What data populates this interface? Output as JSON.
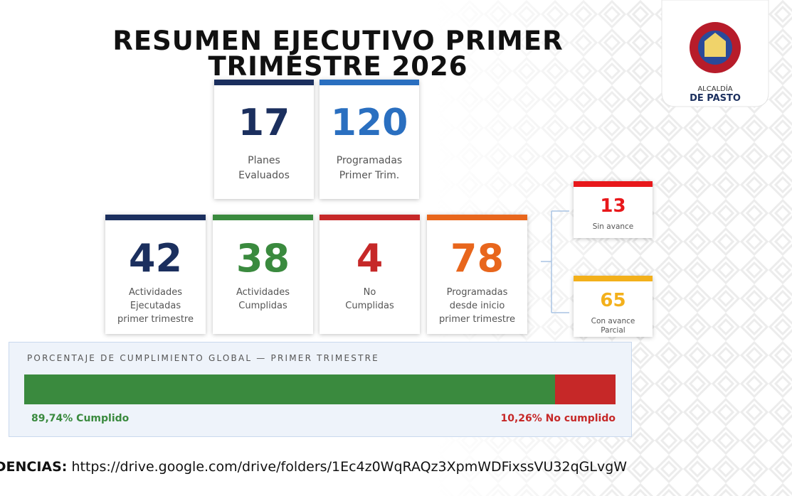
{
  "title": "RESUMEN EJECUTIVO PRIMER TRIMESTRE 2026",
  "logo": {
    "line1": "ALCALDÍA",
    "line2": "DE PASTO"
  },
  "top_cards": [
    {
      "value": 17,
      "label": [
        "Planes",
        "Evaluados"
      ],
      "color": "#1b2f5e"
    },
    {
      "value": 120,
      "label": [
        "Programadas",
        "Primer Trim."
      ],
      "color": "#2a6fc0"
    }
  ],
  "cards": [
    {
      "value": 42,
      "label": [
        "Actividades",
        "Ejecutadas",
        "primer trimestre"
      ],
      "color": "#1b2f5e"
    },
    {
      "value": 38,
      "label": [
        "Actividades",
        "Cumplidas"
      ],
      "color": "#3a8a3e"
    },
    {
      "value": 4,
      "label": [
        "No",
        "Cumplidas"
      ],
      "color": "#c62828"
    },
    {
      "value": 78,
      "label": [
        "Programadas",
        "desde inicio",
        "primer trimestre"
      ],
      "color": "#e8661c"
    }
  ],
  "side_cards": [
    {
      "value": 13,
      "label": [
        "Sin avance"
      ],
      "color": "#e8181b"
    },
    {
      "value": 65,
      "label": [
        "Con avance",
        "Parcial"
      ],
      "color": "#f3b01b"
    }
  ],
  "progress": {
    "heading": "PORCENTAJE DE CUMPLIMIENTO GLOBAL — PRIMER TRIMESTRE",
    "segments": [
      {
        "value": 89.74,
        "label": "89,74% Cumplido",
        "color": "#3a8a3e"
      },
      {
        "value": 10.26,
        "label": "10,26% No cumplido",
        "color": "#c62828"
      }
    ]
  },
  "footer": {
    "label": "EVIDENCIAS:",
    "url": "https://drive.google.com/drive/folders/1Ec4z0WqRAQz3XpmWDFixssVU32qGLvgW"
  }
}
